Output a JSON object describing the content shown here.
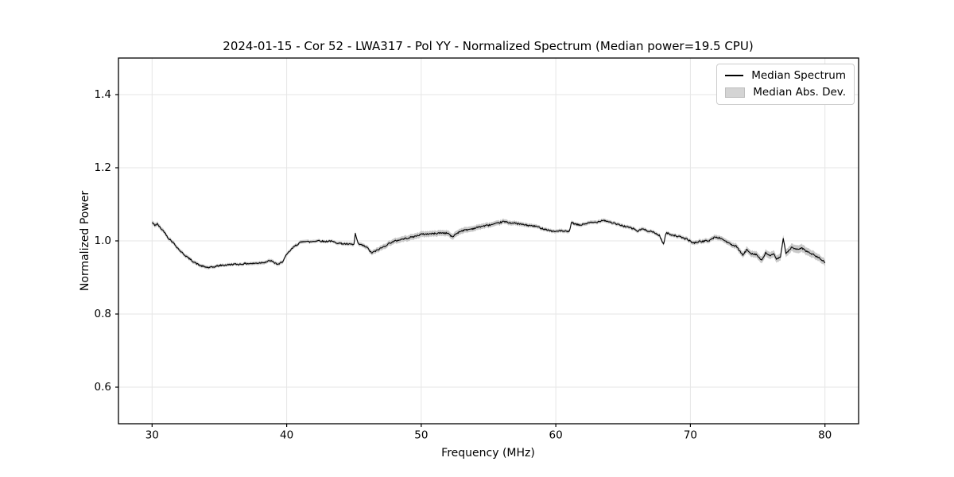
{
  "figure": {
    "title": "2024-01-15 - Cor 52 - LWA317 - Pol YY - Normalized Spectrum (Median power=19.5 CPU)",
    "xlabel": "Frequency (MHz)",
    "ylabel": "Normalized Power"
  },
  "legend": {
    "position": "upper right",
    "items": [
      {
        "label": "Median Spectrum",
        "swatch": "line",
        "color": "#000000"
      },
      {
        "label": "Median Abs. Dev.",
        "swatch": "patch",
        "color": "#d4d4d4"
      }
    ]
  },
  "colors": {
    "line": "#000000",
    "band": "#c9c9c9",
    "grid": "#e6e6e6",
    "spine": "#000000",
    "background": "#ffffff",
    "tick_label": "#000000"
  },
  "chart_data": {
    "type": "line",
    "title": "2024-01-15 - Cor 52 - LWA317 - Pol YY - Normalized Spectrum (Median power=19.5 CPU)",
    "xlabel": "Frequency (MHz)",
    "ylabel": "Normalized Power",
    "xlim": [
      27.5,
      82.5
    ],
    "ylim": [
      0.5,
      1.5
    ],
    "xticks": [
      30,
      40,
      50,
      60,
      70,
      80
    ],
    "yticks": [
      0.6,
      0.8,
      1.0,
      1.2,
      1.4
    ],
    "grid": true,
    "legend_position": "upper right",
    "noise_amplitude": 0.0022,
    "series": [
      {
        "name": "Median Spectrum",
        "type": "line",
        "color": "#000000",
        "points": [
          [
            30.0,
            1.05
          ],
          [
            30.2,
            1.043
          ],
          [
            30.4,
            1.046
          ],
          [
            30.6,
            1.036
          ],
          [
            30.9,
            1.025
          ],
          [
            31.2,
            1.008
          ],
          [
            31.5,
            0.998
          ],
          [
            31.8,
            0.985
          ],
          [
            32.1,
            0.972
          ],
          [
            32.4,
            0.962
          ],
          [
            32.7,
            0.953
          ],
          [
            33.0,
            0.945
          ],
          [
            33.3,
            0.938
          ],
          [
            33.6,
            0.932
          ],
          [
            33.9,
            0.929
          ],
          [
            34.2,
            0.927
          ],
          [
            34.5,
            0.928
          ],
          [
            34.8,
            0.931
          ],
          [
            35.1,
            0.933
          ],
          [
            35.5,
            0.934
          ],
          [
            36.0,
            0.936
          ],
          [
            36.5,
            0.936
          ],
          [
            37.0,
            0.938
          ],
          [
            37.5,
            0.938
          ],
          [
            38.0,
            0.94
          ],
          [
            38.4,
            0.942
          ],
          [
            38.8,
            0.946
          ],
          [
            39.1,
            0.94
          ],
          [
            39.4,
            0.935
          ],
          [
            39.7,
            0.944
          ],
          [
            40.0,
            0.962
          ],
          [
            40.3,
            0.975
          ],
          [
            40.6,
            0.986
          ],
          [
            41.0,
            0.995
          ],
          [
            41.3,
            1.0
          ],
          [
            41.7,
            0.997
          ],
          [
            42.0,
            0.999
          ],
          [
            42.4,
            1.001
          ],
          [
            42.8,
            0.998
          ],
          [
            43.2,
            1.0
          ],
          [
            43.6,
            0.996
          ],
          [
            44.0,
            0.993
          ],
          [
            44.5,
            0.991
          ],
          [
            45.0,
            0.99
          ],
          [
            45.1,
            1.02
          ],
          [
            45.3,
            0.992
          ],
          [
            45.7,
            0.987
          ],
          [
            46.0,
            0.981
          ],
          [
            46.3,
            0.967
          ],
          [
            46.6,
            0.972
          ],
          [
            46.9,
            0.978
          ],
          [
            47.3,
            0.986
          ],
          [
            47.7,
            0.995
          ],
          [
            48.1,
            1.0
          ],
          [
            48.5,
            1.004
          ],
          [
            49.0,
            1.008
          ],
          [
            49.5,
            1.012
          ],
          [
            50.0,
            1.018
          ],
          [
            50.5,
            1.019
          ],
          [
            51.0,
            1.02
          ],
          [
            51.5,
            1.022
          ],
          [
            52.0,
            1.021
          ],
          [
            52.3,
            1.01
          ],
          [
            52.6,
            1.02
          ],
          [
            53.0,
            1.028
          ],
          [
            53.5,
            1.031
          ],
          [
            54.0,
            1.035
          ],
          [
            54.5,
            1.04
          ],
          [
            55.0,
            1.043
          ],
          [
            55.5,
            1.046
          ],
          [
            56.1,
            1.053
          ],
          [
            56.5,
            1.05
          ],
          [
            57.0,
            1.048
          ],
          [
            57.5,
            1.045
          ],
          [
            58.0,
            1.042
          ],
          [
            58.5,
            1.04
          ],
          [
            59.0,
            1.034
          ],
          [
            59.5,
            1.029
          ],
          [
            59.9,
            1.025
          ],
          [
            60.2,
            1.028
          ],
          [
            60.6,
            1.026
          ],
          [
            61.0,
            1.025
          ],
          [
            61.15,
            1.05
          ],
          [
            61.5,
            1.045
          ],
          [
            61.8,
            1.043
          ],
          [
            62.2,
            1.047
          ],
          [
            62.6,
            1.05
          ],
          [
            63.0,
            1.051
          ],
          [
            63.5,
            1.057
          ],
          [
            63.9,
            1.053
          ],
          [
            64.4,
            1.047
          ],
          [
            64.9,
            1.042
          ],
          [
            65.4,
            1.037
          ],
          [
            65.8,
            1.033
          ],
          [
            66.1,
            1.026
          ],
          [
            66.4,
            1.033
          ],
          [
            66.8,
            1.028
          ],
          [
            67.1,
            1.026
          ],
          [
            67.7,
            1.015
          ],
          [
            68.0,
            0.991
          ],
          [
            68.2,
            1.022
          ],
          [
            68.6,
            1.017
          ],
          [
            69.2,
            1.011
          ],
          [
            69.8,
            1.004
          ],
          [
            70.2,
            0.994
          ],
          [
            70.6,
            0.998
          ],
          [
            71.0,
            0.999
          ],
          [
            71.4,
            1.001
          ],
          [
            71.8,
            1.01
          ],
          [
            72.2,
            1.008
          ],
          [
            72.6,
            1.0
          ],
          [
            73.0,
            0.99
          ],
          [
            73.4,
            0.985
          ],
          [
            73.9,
            0.961
          ],
          [
            74.2,
            0.976
          ],
          [
            74.5,
            0.966
          ],
          [
            74.9,
            0.963
          ],
          [
            75.3,
            0.946
          ],
          [
            75.6,
            0.967
          ],
          [
            75.9,
            0.96
          ],
          [
            76.2,
            0.963
          ],
          [
            76.4,
            0.95
          ],
          [
            76.7,
            0.958
          ],
          [
            76.9,
            1.008
          ],
          [
            77.1,
            0.964
          ],
          [
            77.5,
            0.982
          ],
          [
            77.8,
            0.978
          ],
          [
            78.0,
            0.976
          ],
          [
            78.3,
            0.98
          ],
          [
            78.6,
            0.972
          ],
          [
            79.0,
            0.965
          ],
          [
            79.4,
            0.957
          ],
          [
            79.7,
            0.95
          ],
          [
            80.0,
            0.94
          ]
        ]
      },
      {
        "name": "Median Abs. Dev.",
        "type": "band",
        "color": "#c9c9c9",
        "halfwidth_points": [
          [
            30,
            0.006
          ],
          [
            33,
            0.005
          ],
          [
            36,
            0.004
          ],
          [
            39,
            0.005
          ],
          [
            41,
            0.005
          ],
          [
            43,
            0.004
          ],
          [
            45,
            0.005
          ],
          [
            47,
            0.007
          ],
          [
            49,
            0.008
          ],
          [
            51,
            0.008
          ],
          [
            53,
            0.008
          ],
          [
            55,
            0.007
          ],
          [
            57,
            0.006
          ],
          [
            59,
            0.005
          ],
          [
            61,
            0.005
          ],
          [
            63,
            0.005
          ],
          [
            65,
            0.005
          ],
          [
            67,
            0.005
          ],
          [
            69,
            0.005
          ],
          [
            71,
            0.006
          ],
          [
            73,
            0.007
          ],
          [
            75,
            0.009
          ],
          [
            77,
            0.01
          ],
          [
            78,
            0.011
          ],
          [
            79,
            0.01
          ],
          [
            80,
            0.009
          ]
        ]
      }
    ]
  }
}
